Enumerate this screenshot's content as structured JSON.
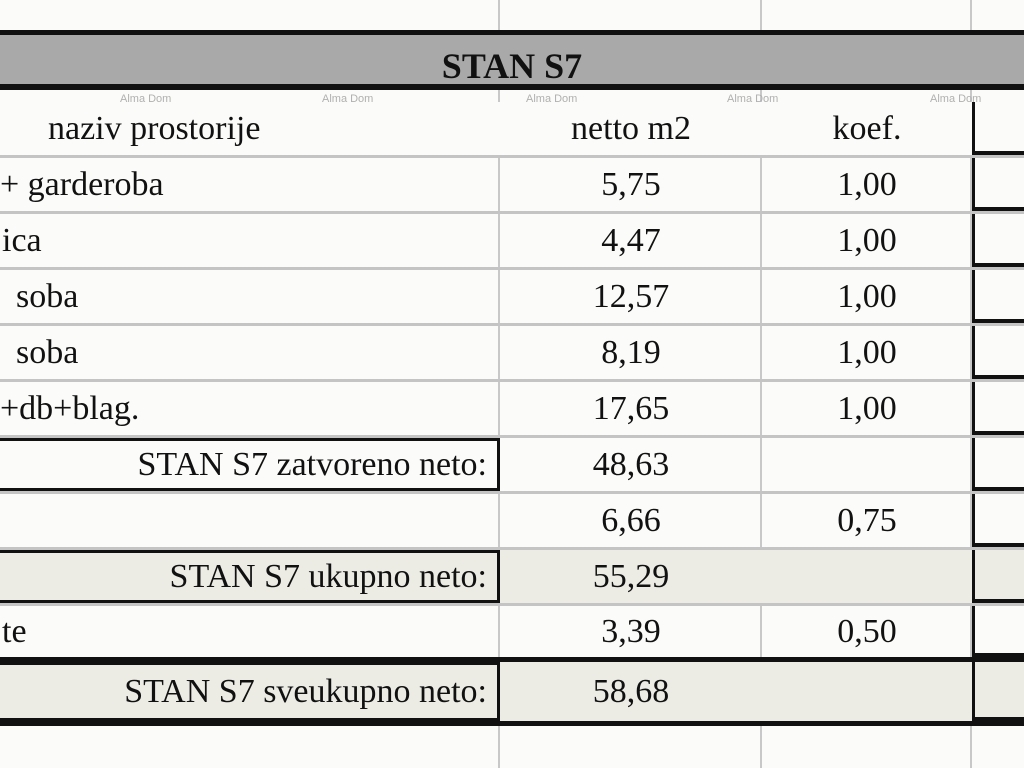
{
  "title": "STAN S7",
  "watermark": "Alma Dom",
  "table": {
    "header": [
      "naziv prostorije",
      "netto m2",
      "koef."
    ],
    "rows": [
      {
        "naziv": "+ garderoba",
        "netto": "5,75",
        "koef": "1,00"
      },
      {
        "naziv": "ica",
        "netto": "4,47",
        "koef": "1,00"
      },
      {
        "naziv": "soba",
        "netto": "12,57",
        "koef": "1,00"
      },
      {
        "naziv": "soba",
        "netto": "8,19",
        "koef": "1,00"
      },
      {
        "naziv": "+db+blag.",
        "netto": "17,65",
        "koef": "1,00"
      },
      {
        "naziv": "STAN S7 zatvoreno neto:",
        "netto": "48,63"
      },
      {
        "netto": "6,66",
        "koef": "0,75"
      },
      {
        "naziv": "STAN S7 ukupno neto:",
        "netto": "55,29"
      },
      {
        "naziv": "te",
        "netto": "3,39",
        "koef": "0,50"
      },
      {
        "naziv": "STAN S7 sveukupno neto:",
        "netto": "58,68"
      }
    ]
  }
}
